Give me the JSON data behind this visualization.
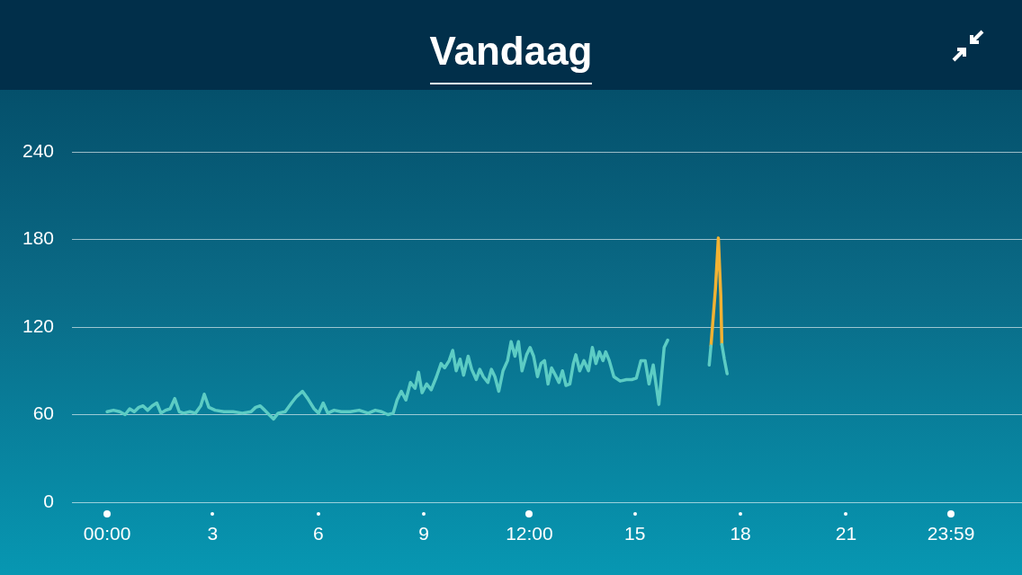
{
  "chart_data": {
    "type": "line",
    "title": "Vandaag",
    "xlim": [
      -1,
      26
    ],
    "ylim": [
      0,
      240
    ],
    "xticks": [
      {
        "value": 0,
        "label": "00:00"
      },
      3,
      6,
      9,
      {
        "value": 12,
        "label": "12:00"
      },
      15,
      18,
      21,
      {
        "value": 23.983,
        "label": "23:59"
      }
    ],
    "yticks": [
      0,
      60,
      120,
      180,
      240
    ],
    "grid": "y",
    "legend": false,
    "marker": "none",
    "line_style": "solid",
    "series": [
      {
        "color": "#5cccc4",
        "x": [
          0,
          0.18,
          0.36,
          0.51,
          0.64,
          0.77,
          0.9,
          1.02,
          1.15,
          1.28,
          1.41,
          1.53,
          1.66,
          1.79,
          1.92,
          2.05,
          2.17,
          2.35,
          2.51,
          2.66,
          2.76,
          2.89,
          3.07,
          3.32,
          3.58,
          3.84,
          4.09,
          4.22,
          4.35,
          4.48,
          4.6,
          4.73,
          4.86,
          5.06,
          5.24,
          5.37,
          5.55,
          5.7,
          5.88,
          6.01,
          6.14,
          6.27,
          6.45,
          6.65,
          6.91,
          7.16,
          7.42,
          7.62,
          7.8,
          7.98,
          8.13,
          8.24,
          8.36,
          8.49,
          8.62,
          8.75,
          8.85,
          8.95,
          9.08,
          9.21,
          9.36,
          9.49,
          9.59,
          9.72,
          9.82,
          9.92,
          10.03,
          10.13,
          10.26,
          10.36,
          10.49,
          10.59,
          10.69,
          10.82,
          10.92,
          11.02,
          11.13,
          11.25,
          11.38,
          11.48,
          11.59,
          11.69,
          11.79,
          11.92,
          12.02,
          12.12,
          12.23,
          12.33,
          12.43,
          12.53,
          12.63,
          12.74,
          12.84,
          12.94,
          13.04,
          13.15,
          13.25,
          13.32,
          13.43,
          13.55,
          13.68,
          13.79,
          13.89,
          13.99,
          14.09,
          14.17,
          14.27,
          14.4,
          14.58,
          14.76,
          14.91,
          15.04,
          15.17,
          15.29,
          15.4,
          15.52,
          15.68,
          15.83,
          15.93,
          16.5,
          17.11,
          17.16,
          17.3,
          17.47,
          17.54,
          17.62
        ],
        "values": [
          62,
          63,
          62,
          60,
          64,
          62,
          65,
          66,
          63,
          66,
          68,
          61,
          63,
          64,
          71,
          62,
          61,
          62,
          61,
          66,
          74,
          65,
          63,
          62,
          62,
          61,
          62,
          65,
          66,
          63,
          60,
          57,
          61,
          62,
          68,
          72,
          76,
          71,
          64,
          61,
          68,
          61,
          63,
          62,
          62,
          63,
          61,
          63,
          62,
          60,
          61,
          70,
          76,
          70,
          82,
          78,
          89,
          75,
          81,
          77,
          86,
          95,
          92,
          97,
          104,
          90,
          98,
          87,
          100,
          91,
          84,
          91,
          86,
          82,
          91,
          86,
          76,
          90,
          97,
          110,
          100,
          110,
          90,
          101,
          106,
          100,
          86,
          95,
          97,
          81,
          92,
          87,
          82,
          90,
          80,
          81,
          95,
          101,
          90,
          97,
          90,
          106,
          95,
          103,
          97,
          103,
          97,
          86,
          83,
          84,
          84,
          85,
          97,
          97,
          81,
          94,
          67,
          106,
          111,
          null,
          94,
          107,
          null,
          108,
          98,
          88
        ]
      },
      {
        "color": "#f2b233",
        "x": [
          17.16,
          17.29,
          17.37,
          17.44,
          17.47
        ],
        "values": [
          107,
          147,
          181,
          141,
          108
        ]
      }
    ]
  }
}
